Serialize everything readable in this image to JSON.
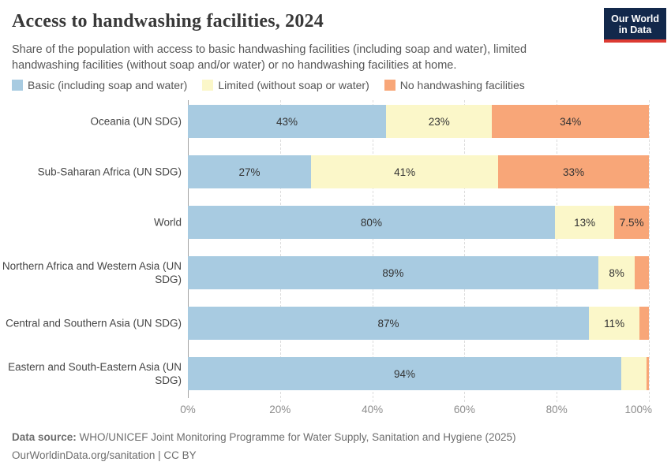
{
  "header": {
    "title": "Access to handwashing facilities, 2024",
    "subtitle": "Share of the population with access to basic handwashing facilities (including soap and water), limited handwashing facilities (without soap and/or water) or no handwashing facilities at home.",
    "logo": {
      "line1": "Our World",
      "line2": "in Data",
      "bg_color": "#12284b",
      "stripe_color": "#dc3a32"
    }
  },
  "legend": {
    "items": [
      {
        "label": "Basic (including soap and water)",
        "color": "#a8cbe1"
      },
      {
        "label": "Limited (without soap or water)",
        "color": "#fbf7c9"
      },
      {
        "label": "No handwashing facilities",
        "color": "#f8a678"
      }
    ]
  },
  "chart_data": {
    "type": "bar",
    "orientation": "horizontal-stacked",
    "title": "Access to handwashing facilities, 2024",
    "categories": [
      "Oceania (UN SDG)",
      "Sub-Saharan Africa (UN SDG)",
      "World",
      "Northern Africa and Western Asia (UN SDG)",
      "Central and Southern Asia (UN SDG)",
      "Eastern and South-Eastern Asia (UN SDG)"
    ],
    "series": [
      {
        "name": "Basic (including soap and water)",
        "color": "#a8cbe1",
        "values": [
          43,
          27,
          80,
          89,
          87,
          94
        ],
        "labels": [
          "43%",
          "27%",
          "80%",
          "89%",
          "87%",
          "94%"
        ]
      },
      {
        "name": "Limited (without soap or water)",
        "color": "#fbf7c9",
        "values": [
          23,
          41,
          13,
          8,
          11,
          5.5
        ],
        "labels": [
          "23%",
          "41%",
          "13%",
          "8%",
          "11%",
          ""
        ]
      },
      {
        "name": "No handwashing facilities",
        "color": "#f8a678",
        "values": [
          34,
          33,
          7.5,
          3,
          2,
          0.5
        ],
        "labels": [
          "34%",
          "33%",
          "7.5%",
          "",
          "",
          ""
        ]
      }
    ],
    "xlabel": "",
    "ylabel": "",
    "xlim": [
      0,
      100
    ],
    "x_ticks": [
      "0%",
      "20%",
      "40%",
      "60%",
      "80%",
      "100%"
    ],
    "grid": "vertical-dashed",
    "legend_position": "top"
  },
  "footer": {
    "source_label": "Data source:",
    "source_text": " WHO/UNICEF Joint Monitoring Programme for Water Supply, Sanitation and Hygiene (2025)",
    "license": "OurWorldinData.org/sanitation | CC BY"
  },
  "colors": {
    "title_text": "#383838",
    "subtitle_text": "#565656",
    "axis_label": "#8c8c8c",
    "gridline": "#dcdcdc",
    "axis_line": "#a3a3a3",
    "footer_text": "#6e6e6e"
  }
}
